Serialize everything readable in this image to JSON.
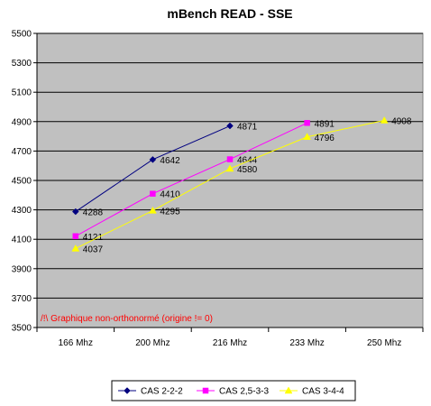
{
  "chart_data": {
    "type": "line",
    "title": "mBench READ - SSE",
    "xlabel": "",
    "ylabel": "",
    "categories": [
      "166 Mhz",
      "200 Mhz",
      "216 Mhz",
      "233 Mhz",
      "250 Mhz"
    ],
    "ylim": [
      3500,
      5500
    ],
    "yticks": [
      3500,
      3700,
      3900,
      4100,
      4300,
      4500,
      4700,
      4900,
      5100,
      5300,
      5500
    ],
    "grid": true,
    "legend_position": "bottom",
    "annotation": "/!\\ Graphique non-orthonormé (origine != 0)",
    "series": [
      {
        "name": "CAS 2-2-2",
        "values": [
          4288,
          4642,
          4871,
          null,
          null
        ],
        "color": "#000080",
        "marker": "diamond"
      },
      {
        "name": "CAS 2,5-3-3",
        "values": [
          4121,
          4410,
          4644,
          4891,
          null
        ],
        "color": "#ff00ff",
        "marker": "square"
      },
      {
        "name": "CAS 3-4-4",
        "values": [
          4037,
          4295,
          4580,
          4796,
          4908
        ],
        "color": "#ffff00",
        "marker": "triangle"
      }
    ],
    "colors": {
      "plot_background": "#c0c0c0",
      "gridline": "#000000",
      "annotation": "#ff0000"
    }
  }
}
